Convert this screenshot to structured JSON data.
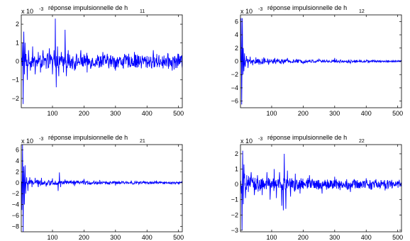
{
  "figure": {
    "line_color": "#0000ff",
    "axis_color": "#000000",
    "background": "#ffffff"
  },
  "chart_data": [
    {
      "type": "line",
      "title": "réponse impulsionnelle de h",
      "title_subscript": "11",
      "scale_multiplier": "x 10",
      "scale_exponent": "-3",
      "x_ticks": [
        "100",
        "200",
        "300",
        "400",
        "500"
      ],
      "x_tick_values": [
        100,
        200,
        300,
        400,
        500
      ],
      "y_ticks": [
        "-2",
        "-1",
        "0",
        "1",
        "2"
      ],
      "y_tick_values": [
        -2,
        -1,
        0,
        1,
        2
      ],
      "xlim": [
        1,
        512
      ],
      "ylim": [
        -2.5,
        2.5
      ],
      "grid": false,
      "series": [
        {
          "values_note": "x = sample index 1..512",
          "spikes": [
            [
              5,
              1.0
            ],
            [
              7,
              -2.3
            ],
            [
              9,
              1.6
            ],
            [
              11,
              -0.7
            ],
            [
              13,
              1.0
            ],
            [
              16,
              0.4
            ],
            [
              20,
              -1.0
            ],
            [
              24,
              0.6
            ],
            [
              30,
              -0.5
            ],
            [
              37,
              0.8
            ],
            [
              45,
              -0.7
            ],
            [
              55,
              0.5
            ],
            [
              62,
              -0.6
            ],
            [
              70,
              0.6
            ],
            [
              80,
              -0.4
            ],
            [
              90,
              0.7
            ],
            [
              100,
              -0.7
            ],
            [
              105,
              0.6
            ],
            [
              109,
              2.3
            ],
            [
              112,
              -1.4
            ],
            [
              116,
              0.8
            ],
            [
              120,
              -0.8
            ],
            [
              128,
              0.5
            ],
            [
              135,
              -0.6
            ],
            [
              140,
              1.7
            ],
            [
              144,
              -0.8
            ],
            [
              150,
              0.6
            ],
            [
              170,
              -0.5
            ],
            [
              190,
              0.6
            ],
            [
              210,
              -0.6
            ],
            [
              260,
              0.5
            ],
            [
              300,
              -0.5
            ],
            [
              360,
              0.5
            ],
            [
              420,
              0.6
            ],
            [
              480,
              -0.5
            ],
            [
              500,
              0.4
            ]
          ],
          "noise_amplitude": 0.35,
          "decay": 0.0
        }
      ]
    },
    {
      "type": "line",
      "title": "réponse impulsionnelle de h",
      "title_subscript": "12",
      "scale_multiplier": "x 10",
      "scale_exponent": "-3",
      "x_ticks": [
        "100",
        "200",
        "300",
        "400",
        "500"
      ],
      "x_tick_values": [
        100,
        200,
        300,
        400,
        500
      ],
      "y_ticks": [
        "-6",
        "-4",
        "-2",
        "0",
        "2",
        "4",
        "6"
      ],
      "y_tick_values": [
        -6,
        -4,
        -2,
        0,
        2,
        4,
        6
      ],
      "xlim": [
        1,
        512
      ],
      "ylim": [
        -7,
        7
      ],
      "grid": false,
      "series": [
        {
          "values_note": "x = sample index 1..512",
          "spikes": [
            [
              3,
              6.5
            ],
            [
              5,
              -6.5
            ],
            [
              7,
              6.5
            ],
            [
              9,
              -2.0
            ],
            [
              10,
              2.0
            ],
            [
              12,
              -1.5
            ],
            [
              14,
              1.2
            ],
            [
              16,
              -0.8
            ],
            [
              20,
              0.8
            ],
            [
              25,
              -1.0
            ],
            [
              32,
              0.7
            ],
            [
              40,
              -0.6
            ],
            [
              50,
              0.6
            ],
            [
              60,
              -0.5
            ],
            [
              75,
              0.6
            ],
            [
              90,
              -0.5
            ],
            [
              110,
              0.5
            ],
            [
              130,
              -0.4
            ],
            [
              150,
              0.5
            ],
            [
              200,
              -0.4
            ],
            [
              250,
              0.4
            ],
            [
              300,
              0.5
            ],
            [
              350,
              -0.3
            ]
          ],
          "noise_amplitude": 0.45,
          "decay": 0.004
        }
      ]
    },
    {
      "type": "line",
      "title": "réponse impulsionnelle de h",
      "title_subscript": "21",
      "scale_multiplier": "x 10",
      "scale_exponent": "-3",
      "x_ticks": [
        "100",
        "200",
        "300",
        "400",
        "500"
      ],
      "x_tick_values": [
        100,
        200,
        300,
        400,
        500
      ],
      "y_ticks": [
        "-8",
        "-6",
        "-4",
        "-2",
        "0",
        "2",
        "4",
        "6"
      ],
      "y_tick_values": [
        -8,
        -6,
        -4,
        -2,
        0,
        2,
        4,
        6
      ],
      "xlim": [
        1,
        512
      ],
      "ylim": [
        -9,
        7
      ],
      "grid": false,
      "series": [
        {
          "values_note": "x = sample index 1..512",
          "spikes": [
            [
              3,
              -5.0
            ],
            [
              5,
              7.0
            ],
            [
              7,
              -9.0
            ],
            [
              9,
              3.0
            ],
            [
              11,
              -4.0
            ],
            [
              13,
              3.2
            ],
            [
              15,
              -2.0
            ],
            [
              18,
              1.0
            ],
            [
              22,
              -1.5
            ],
            [
              28,
              1.0
            ],
            [
              35,
              -0.8
            ],
            [
              45,
              0.9
            ],
            [
              55,
              -0.8
            ],
            [
              65,
              0.9
            ],
            [
              80,
              -0.7
            ],
            [
              100,
              0.8
            ],
            [
              118,
              -1.5
            ],
            [
              122,
              1.9
            ],
            [
              126,
              -0.8
            ],
            [
              140,
              0.6
            ],
            [
              170,
              -0.6
            ],
            [
              200,
              0.7
            ],
            [
              250,
              0.5
            ],
            [
              300,
              -0.5
            ],
            [
              350,
              0.4
            ],
            [
              430,
              0.4
            ],
            [
              490,
              -0.3
            ]
          ],
          "noise_amplitude": 0.5,
          "decay": 0.003
        }
      ]
    },
    {
      "type": "line",
      "title": "réponse impulsionnelle de h",
      "title_subscript": "22",
      "scale_multiplier": "x 10",
      "scale_exponent": "-3",
      "x_ticks": [
        "100",
        "200",
        "300",
        "400",
        "500"
      ],
      "x_tick_values": [
        100,
        200,
        300,
        400,
        500
      ],
      "y_ticks": [
        "-3",
        "-2",
        "-1",
        "0",
        "1",
        "2"
      ],
      "y_tick_values": [
        -3,
        -2,
        -1,
        0,
        1,
        2
      ],
      "xlim": [
        1,
        512
      ],
      "ylim": [
        -3.1,
        2.6
      ],
      "grid": false,
      "series": [
        {
          "values_note": "x = sample index 1..512",
          "spikes": [
            [
              4,
              -0.6
            ],
            [
              6,
              -3.0
            ],
            [
              8,
              2.2
            ],
            [
              10,
              -1.3
            ],
            [
              12,
              1.3
            ],
            [
              14,
              0.7
            ],
            [
              17,
              -0.9
            ],
            [
              21,
              0.6
            ],
            [
              26,
              -0.5
            ],
            [
              35,
              0.8
            ],
            [
              45,
              -0.7
            ],
            [
              55,
              0.6
            ],
            [
              70,
              -0.7
            ],
            [
              85,
              0.8
            ],
            [
              95,
              -1.0
            ],
            [
              108,
              1.0
            ],
            [
              115,
              -0.9
            ],
            [
              125,
              0.8
            ],
            [
              132,
              -1.4
            ],
            [
              137,
              -1.7
            ],
            [
              140,
              2.0
            ],
            [
              145,
              -1.6
            ],
            [
              150,
              0.9
            ],
            [
              160,
              -0.8
            ],
            [
              175,
              0.7
            ],
            [
              190,
              -0.6
            ],
            [
              220,
              0.6
            ],
            [
              260,
              -0.6
            ],
            [
              300,
              0.5
            ],
            [
              350,
              -0.5
            ],
            [
              400,
              0.4
            ],
            [
              460,
              -0.4
            ],
            [
              505,
              0.3
            ]
          ],
          "noise_amplitude": 0.45,
          "decay": 0.0015
        }
      ]
    }
  ]
}
